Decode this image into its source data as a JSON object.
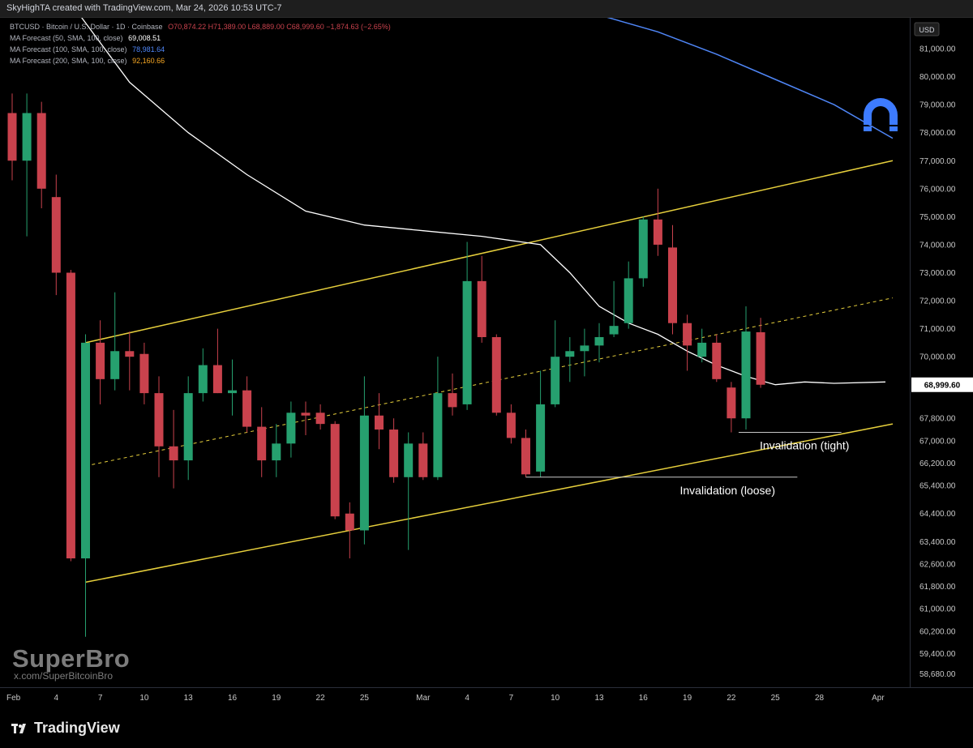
{
  "header": {
    "credit": "SkyHighTA created with TradingView.com, Mar 24, 2026 10:53 UTC-7"
  },
  "legend": {
    "symbol": "BTCUSD · Bitcoin / U.S. Dollar · 1D · Coinbase",
    "ohlc": "O70,874.22 H71,389.00 L68,889.00 C68,999.60 −1,874.63 (−2.65%)",
    "ma": [
      {
        "label": "MA Forecast (50, SMA, 100, close)",
        "value": "69,008.51",
        "color": "#ffffff"
      },
      {
        "label": "MA Forecast (100, SMA, 100, close)",
        "value": "78,981.64",
        "color": "#4f86f7"
      },
      {
        "label": "MA Forecast (200, SMA, 100, close)",
        "value": "92,160.66",
        "color": "#f5a623"
      }
    ]
  },
  "colors": {
    "up": "#26a06f",
    "down": "#c9424d",
    "channel": "#e6cf3c",
    "ma50": "#ffffff",
    "ma100": "#4f86f7",
    "magnet": "#3d7bff"
  },
  "watermark": {
    "name": "SuperBro",
    "handle": "x.com/SuperBitcoinBro",
    "brand": "TradingView"
  },
  "chart_data": {
    "type": "candlestick",
    "currency": "USD",
    "ylim": [
      58200,
      82100
    ],
    "last_price": "68,999.60",
    "y_ticks": [
      {
        "v": 81000,
        "label": "81,000.00"
      },
      {
        "v": 80000,
        "label": "80,000.00"
      },
      {
        "v": 79000,
        "label": "79,000.00"
      },
      {
        "v": 78000,
        "label": "78,000.00"
      },
      {
        "v": 77000,
        "label": "77,000.00"
      },
      {
        "v": 76000,
        "label": "76,000.00"
      },
      {
        "v": 75000,
        "label": "75,000.00"
      },
      {
        "v": 74000,
        "label": "74,000.00"
      },
      {
        "v": 73000,
        "label": "73,000.00"
      },
      {
        "v": 72000,
        "label": "72,000.00"
      },
      {
        "v": 71000,
        "label": "71,000.00"
      },
      {
        "v": 70000,
        "label": "70,000.00"
      },
      {
        "v": 67800,
        "label": "67,800.00"
      },
      {
        "v": 67000,
        "label": "67,000.00"
      },
      {
        "v": 66200,
        "label": "66,200.00"
      },
      {
        "v": 65400,
        "label": "65,400.00"
      },
      {
        "v": 64400,
        "label": "64,400.00"
      },
      {
        "v": 63400,
        "label": "63,400.00"
      },
      {
        "v": 62600,
        "label": "62,600.00"
      },
      {
        "v": 61800,
        "label": "61,800.00"
      },
      {
        "v": 61000,
        "label": "61,000.00"
      },
      {
        "v": 60200,
        "label": "60,200.00"
      },
      {
        "v": 59400,
        "label": "59,400.00"
      },
      {
        "v": 58680,
        "label": "58,680.00"
      }
    ],
    "x_ticks": [
      {
        "d": 0,
        "label": "Feb"
      },
      {
        "d": 3,
        "label": "4"
      },
      {
        "d": 6,
        "label": "7"
      },
      {
        "d": 9,
        "label": "10"
      },
      {
        "d": 12,
        "label": "13"
      },
      {
        "d": 15,
        "label": "16"
      },
      {
        "d": 18,
        "label": "19"
      },
      {
        "d": 21,
        "label": "22"
      },
      {
        "d": 24,
        "label": "25"
      },
      {
        "d": 28,
        "label": "Mar"
      },
      {
        "d": 31,
        "label": "4"
      },
      {
        "d": 34,
        "label": "7"
      },
      {
        "d": 37,
        "label": "10"
      },
      {
        "d": 40,
        "label": "13"
      },
      {
        "d": 43,
        "label": "16"
      },
      {
        "d": 46,
        "label": "19"
      },
      {
        "d": 49,
        "label": "22"
      },
      {
        "d": 52,
        "label": "25"
      },
      {
        "d": 55,
        "label": "28"
      },
      {
        "d": 59,
        "label": "Apr"
      }
    ],
    "candles": [
      {
        "date": "Feb 1",
        "o": 78700,
        "h": 79400,
        "l": 76300,
        "c": 77000
      },
      {
        "date": "Feb 2",
        "o": 77000,
        "h": 79400,
        "l": 74300,
        "c": 78700
      },
      {
        "date": "Feb 3",
        "o": 78700,
        "h": 79100,
        "l": 75300,
        "c": 76000
      },
      {
        "date": "Feb 4",
        "o": 75700,
        "h": 76500,
        "l": 72200,
        "c": 73000
      },
      {
        "date": "Feb 5",
        "o": 73000,
        "h": 73100,
        "l": 62700,
        "c": 62800
      },
      {
        "date": "Feb 6",
        "o": 62800,
        "h": 70800,
        "l": 60000,
        "c": 70500
      },
      {
        "date": "Feb 7",
        "o": 70500,
        "h": 71300,
        "l": 68300,
        "c": 69200
      },
      {
        "date": "Feb 8",
        "o": 69200,
        "h": 72300,
        "l": 68800,
        "c": 70200
      },
      {
        "date": "Feb 9",
        "o": 70200,
        "h": 70900,
        "l": 68800,
        "c": 70000
      },
      {
        "date": "Feb 10",
        "o": 70100,
        "h": 70500,
        "l": 68300,
        "c": 68700
      },
      {
        "date": "Feb 11",
        "o": 68700,
        "h": 69300,
        "l": 65700,
        "c": 66800
      },
      {
        "date": "Feb 12",
        "o": 66800,
        "h": 68100,
        "l": 65300,
        "c": 66300
      },
      {
        "date": "Feb 13",
        "o": 66300,
        "h": 69300,
        "l": 65600,
        "c": 68700
      },
      {
        "date": "Feb 14",
        "o": 68700,
        "h": 70300,
        "l": 68400,
        "c": 69700
      },
      {
        "date": "Feb 15",
        "o": 69700,
        "h": 71000,
        "l": 68700,
        "c": 68700
      },
      {
        "date": "Feb 16",
        "o": 68700,
        "h": 69900,
        "l": 67900,
        "c": 68800
      },
      {
        "date": "Feb 17",
        "o": 68800,
        "h": 69300,
        "l": 67300,
        "c": 67500
      },
      {
        "date": "Feb 18",
        "o": 67500,
        "h": 68200,
        "l": 65700,
        "c": 66300
      },
      {
        "date": "Feb 19",
        "o": 66300,
        "h": 67600,
        "l": 65700,
        "c": 66900
      },
      {
        "date": "Feb 20",
        "o": 66900,
        "h": 68400,
        "l": 66400,
        "c": 68000
      },
      {
        "date": "Feb 21",
        "o": 68000,
        "h": 68400,
        "l": 67200,
        "c": 67900
      },
      {
        "date": "Feb 22",
        "o": 68000,
        "h": 68300,
        "l": 67400,
        "c": 67600
      },
      {
        "date": "Feb 23",
        "o": 67600,
        "h": 67700,
        "l": 64200,
        "c": 64300
      },
      {
        "date": "Feb 24",
        "o": 64400,
        "h": 64800,
        "l": 62800,
        "c": 63800
      },
      {
        "date": "Feb 25",
        "o": 63800,
        "h": 69300,
        "l": 63300,
        "c": 67900
      },
      {
        "date": "Feb 26",
        "o": 67900,
        "h": 68700,
        "l": 66700,
        "c": 67400
      },
      {
        "date": "Feb 27",
        "o": 67400,
        "h": 67800,
        "l": 65500,
        "c": 65700
      },
      {
        "date": "Feb 28",
        "o": 65700,
        "h": 67300,
        "l": 63100,
        "c": 66900
      },
      {
        "date": "Mar 1",
        "o": 66900,
        "h": 67300,
        "l": 65600,
        "c": 65700
      },
      {
        "date": "Mar 2",
        "o": 65700,
        "h": 70000,
        "l": 65600,
        "c": 68700
      },
      {
        "date": "Mar 3",
        "o": 68700,
        "h": 69400,
        "l": 67900,
        "c": 68200
      },
      {
        "date": "Mar 4",
        "o": 68300,
        "h": 74100,
        "l": 68100,
        "c": 72700
      },
      {
        "date": "Mar 5",
        "o": 72700,
        "h": 73600,
        "l": 70500,
        "c": 70700
      },
      {
        "date": "Mar 6",
        "o": 70700,
        "h": 70800,
        "l": 67900,
        "c": 68000
      },
      {
        "date": "Mar 7",
        "o": 68000,
        "h": 68300,
        "l": 66900,
        "c": 67100
      },
      {
        "date": "Mar 8",
        "o": 67100,
        "h": 67400,
        "l": 65700,
        "c": 65800
      },
      {
        "date": "Mar 9",
        "o": 65900,
        "h": 69500,
        "l": 65700,
        "c": 68300
      },
      {
        "date": "Mar 10",
        "o": 68300,
        "h": 71300,
        "l": 68200,
        "c": 70000
      },
      {
        "date": "Mar 11",
        "o": 70000,
        "h": 70700,
        "l": 69100,
        "c": 70200
      },
      {
        "date": "Mar 12",
        "o": 70200,
        "h": 71000,
        "l": 69300,
        "c": 70400
      },
      {
        "date": "Mar 13",
        "o": 70400,
        "h": 71200,
        "l": 69800,
        "c": 70700
      },
      {
        "date": "Mar 14",
        "o": 70800,
        "h": 72700,
        "l": 70700,
        "c": 71100
      },
      {
        "date": "Mar 15",
        "o": 71200,
        "h": 73400,
        "l": 71000,
        "c": 72800
      },
      {
        "date": "Mar 16",
        "o": 72800,
        "h": 75000,
        "l": 72500,
        "c": 74900
      },
      {
        "date": "Mar 17",
        "o": 74900,
        "h": 76000,
        "l": 73600,
        "c": 74000
      },
      {
        "date": "Mar 18",
        "o": 73900,
        "h": 74700,
        "l": 70800,
        "c": 71200
      },
      {
        "date": "Mar 19",
        "o": 71200,
        "h": 71500,
        "l": 69500,
        "c": 70400
      },
      {
        "date": "Mar 20",
        "o": 70000,
        "h": 71000,
        "l": 69800,
        "c": 70500
      },
      {
        "date": "Mar 21",
        "o": 70500,
        "h": 70800,
        "l": 69100,
        "c": 69200
      },
      {
        "date": "Mar 22",
        "o": 68900,
        "h": 69100,
        "l": 67300,
        "c": 67800
      },
      {
        "date": "Mar 23",
        "o": 67800,
        "h": 71800,
        "l": 67400,
        "c": 70900
      },
      {
        "date": "Mar 24",
        "o": 70874,
        "h": 71389,
        "l": 68889,
        "c": 69000
      }
    ],
    "ma50": [
      [
        4.6,
        82200
      ],
      [
        8,
        79800
      ],
      [
        12,
        78000
      ],
      [
        16,
        76500
      ],
      [
        20,
        75200
      ],
      [
        24,
        74700
      ],
      [
        28,
        74500
      ],
      [
        32,
        74300
      ],
      [
        36,
        74000
      ],
      [
        38,
        73000
      ],
      [
        40,
        71800
      ],
      [
        42,
        71200
      ],
      [
        44,
        70800
      ],
      [
        46,
        70200
      ],
      [
        48,
        69700
      ],
      [
        50,
        69300
      ],
      [
        52,
        69000
      ],
      [
        54,
        69100
      ],
      [
        56,
        69050
      ],
      [
        59.5,
        69100
      ]
    ],
    "ma100": [
      [
        40,
        82200
      ],
      [
        44,
        81600
      ],
      [
        48,
        80800
      ],
      [
        52,
        79900
      ],
      [
        56,
        79000
      ],
      [
        60,
        77800
      ]
    ],
    "channel_top": {
      "p1": [
        5,
        70500
      ],
      "p2": [
        60,
        77000
      ]
    },
    "channel_mid": {
      "p1": [
        5,
        66100
      ],
      "p2": [
        60,
        72100
      ]
    },
    "channel_bot": {
      "p1": [
        5,
        61950
      ],
      "p2": [
        60,
        67600
      ]
    },
    "annotations": [
      {
        "text": "Invalidation (tight)",
        "level": 67300,
        "from": 49.5,
        "to": 56.5
      },
      {
        "text": "Invalidation (loose)",
        "level": 65700,
        "from": 35,
        "to": 53.5
      }
    ]
  }
}
